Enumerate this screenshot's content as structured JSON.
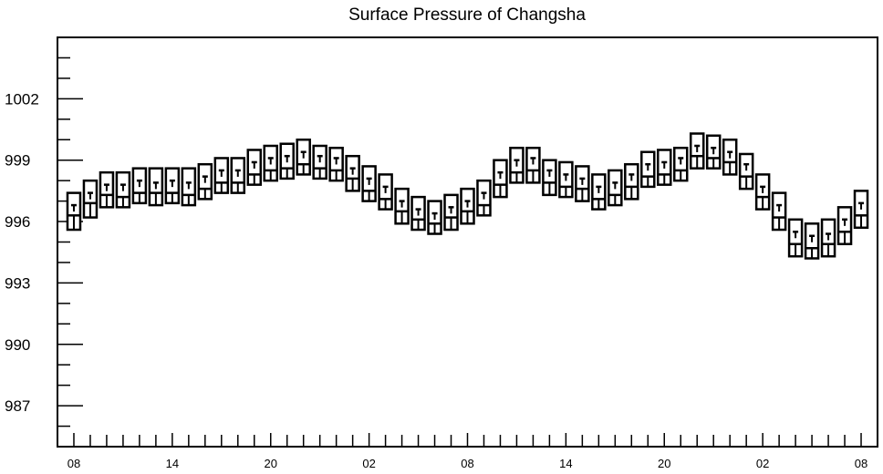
{
  "chart_data": {
    "type": "box",
    "title": "Surface Pressure of Changsha",
    "xlabel": "",
    "ylabel": "",
    "ylim": [
      985,
      1005
    ],
    "yticks": [
      987,
      990,
      993,
      996,
      999,
      1002
    ],
    "x_tick_labels": [
      "08",
      "14",
      "20",
      "02",
      "08",
      "14",
      "20",
      "02",
      "08"
    ],
    "x_tick_label_positions": [
      0,
      6,
      12,
      18,
      24,
      30,
      36,
      42,
      48
    ],
    "x_range": [
      -1,
      49
    ],
    "grid": false,
    "boxes": [
      {
        "x": 0,
        "min": 995.6,
        "q1": 996.3,
        "median": 996.8,
        "q3": 997.4
      },
      {
        "x": 1,
        "min": 996.2,
        "q1": 996.9,
        "median": 997.4,
        "q3": 998.0
      },
      {
        "x": 2,
        "min": 996.7,
        "q1": 997.3,
        "median": 997.8,
        "q3": 998.4
      },
      {
        "x": 3,
        "min": 996.7,
        "q1": 997.2,
        "median": 997.8,
        "q3": 998.4
      },
      {
        "x": 4,
        "min": 996.9,
        "q1": 997.4,
        "median": 998.0,
        "q3": 998.6
      },
      {
        "x": 5,
        "min": 996.8,
        "q1": 997.4,
        "median": 997.9,
        "q3": 998.6
      },
      {
        "x": 6,
        "min": 996.9,
        "q1": 997.4,
        "median": 998.0,
        "q3": 998.6
      },
      {
        "x": 7,
        "min": 996.8,
        "q1": 997.3,
        "median": 997.9,
        "q3": 998.6
      },
      {
        "x": 8,
        "min": 997.1,
        "q1": 997.6,
        "median": 998.2,
        "q3": 998.8
      },
      {
        "x": 9,
        "min": 997.4,
        "q1": 997.9,
        "median": 998.5,
        "q3": 999.1
      },
      {
        "x": 10,
        "min": 997.4,
        "q1": 997.9,
        "median": 998.5,
        "q3": 999.1
      },
      {
        "x": 11,
        "min": 997.8,
        "q1": 998.3,
        "median": 998.9,
        "q3": 999.5
      },
      {
        "x": 12,
        "min": 998.0,
        "q1": 998.5,
        "median": 999.1,
        "q3": 999.7
      },
      {
        "x": 13,
        "min": 998.1,
        "q1": 998.6,
        "median": 999.2,
        "q3": 999.8
      },
      {
        "x": 14,
        "min": 998.3,
        "q1": 998.8,
        "median": 999.4,
        "q3": 1000.0
      },
      {
        "x": 15,
        "min": 998.1,
        "q1": 998.6,
        "median": 999.2,
        "q3": 999.7
      },
      {
        "x": 16,
        "min": 998.0,
        "q1": 998.5,
        "median": 999.1,
        "q3": 999.6
      },
      {
        "x": 17,
        "min": 997.5,
        "q1": 998.1,
        "median": 998.6,
        "q3": 999.2
      },
      {
        "x": 18,
        "min": 997.0,
        "q1": 997.5,
        "median": 998.1,
        "q3": 998.7
      },
      {
        "x": 19,
        "min": 996.6,
        "q1": 997.1,
        "median": 997.7,
        "q3": 998.3
      },
      {
        "x": 20,
        "min": 995.9,
        "q1": 996.5,
        "median": 997.0,
        "q3": 997.6
      },
      {
        "x": 21,
        "min": 995.6,
        "q1": 996.1,
        "median": 996.6,
        "q3": 997.2
      },
      {
        "x": 22,
        "min": 995.4,
        "q1": 995.9,
        "median": 996.4,
        "q3": 997.0
      },
      {
        "x": 23,
        "min": 995.6,
        "q1": 996.2,
        "median": 996.7,
        "q3": 997.3
      },
      {
        "x": 24,
        "min": 995.9,
        "q1": 996.5,
        "median": 997.0,
        "q3": 997.6
      },
      {
        "x": 25,
        "min": 996.3,
        "q1": 996.8,
        "median": 997.4,
        "q3": 998.0
      },
      {
        "x": 26,
        "min": 997.2,
        "q1": 997.8,
        "median": 998.4,
        "q3": 999.0
      },
      {
        "x": 27,
        "min": 997.9,
        "q1": 998.4,
        "median": 999.0,
        "q3": 999.6
      },
      {
        "x": 28,
        "min": 997.9,
        "q1": 998.5,
        "median": 999.1,
        "q3": 999.6
      },
      {
        "x": 29,
        "min": 997.3,
        "q1": 997.9,
        "median": 998.5,
        "q3": 999.0
      },
      {
        "x": 30,
        "min": 997.2,
        "q1": 997.7,
        "median": 998.3,
        "q3": 998.9
      },
      {
        "x": 31,
        "min": 997.0,
        "q1": 997.6,
        "median": 998.1,
        "q3": 998.7
      },
      {
        "x": 32,
        "min": 996.6,
        "q1": 997.1,
        "median": 997.7,
        "q3": 998.3
      },
      {
        "x": 33,
        "min": 996.8,
        "q1": 997.3,
        "median": 997.9,
        "q3": 998.5
      },
      {
        "x": 34,
        "min": 997.1,
        "q1": 997.7,
        "median": 998.3,
        "q3": 998.8
      },
      {
        "x": 35,
        "min": 997.7,
        "q1": 998.2,
        "median": 998.8,
        "q3": 999.4
      },
      {
        "x": 36,
        "min": 997.8,
        "q1": 998.3,
        "median": 998.9,
        "q3": 999.5
      },
      {
        "x": 37,
        "min": 998.0,
        "q1": 998.5,
        "median": 999.1,
        "q3": 999.6
      },
      {
        "x": 38,
        "min": 998.6,
        "q1": 999.2,
        "median": 999.7,
        "q3": 1000.3
      },
      {
        "x": 39,
        "min": 998.6,
        "q1": 999.1,
        "median": 999.6,
        "q3": 1000.2
      },
      {
        "x": 40,
        "min": 998.3,
        "q1": 998.9,
        "median": 999.4,
        "q3": 1000.0
      },
      {
        "x": 41,
        "min": 997.6,
        "q1": 998.2,
        "median": 998.8,
        "q3": 999.3
      },
      {
        "x": 42,
        "min": 996.6,
        "q1": 997.2,
        "median": 997.7,
        "q3": 998.3
      },
      {
        "x": 43,
        "min": 995.6,
        "q1": 996.2,
        "median": 996.8,
        "q3": 997.4
      },
      {
        "x": 44,
        "min": 994.3,
        "q1": 994.9,
        "median": 995.5,
        "q3": 996.1
      },
      {
        "x": 45,
        "min": 994.2,
        "q1": 994.7,
        "median": 995.3,
        "q3": 995.9
      },
      {
        "x": 46,
        "min": 994.3,
        "q1": 994.9,
        "median": 995.4,
        "q3": 996.1
      },
      {
        "x": 47,
        "min": 994.9,
        "q1": 995.5,
        "median": 996.1,
        "q3": 996.7
      },
      {
        "x": 48,
        "min": 995.7,
        "q1": 996.3,
        "median": 996.9,
        "q3": 997.5
      }
    ]
  }
}
